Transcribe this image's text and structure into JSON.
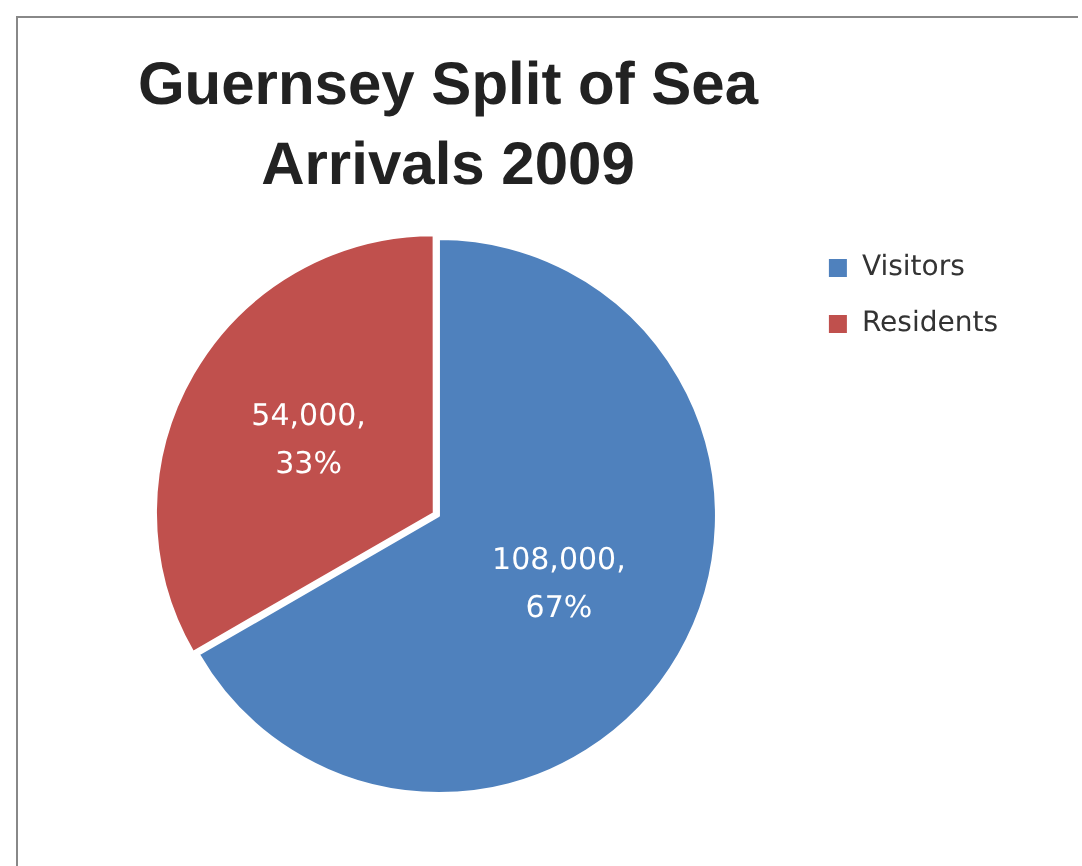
{
  "chart_data": {
    "type": "pie",
    "title": "Guernsey Split of Sea Arrivals 2009",
    "categories": [
      "Visitors",
      "Residents"
    ],
    "values": [
      108000,
      54000
    ],
    "colors": [
      "#4f81bd",
      "#c0504d"
    ],
    "value_labels": [
      "108,000, 67%",
      "54,000, 33%"
    ],
    "legend": "right"
  }
}
